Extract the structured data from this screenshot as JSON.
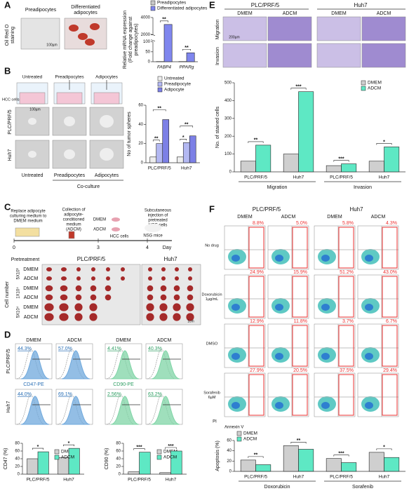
{
  "panels": {
    "A": {
      "label": "A",
      "row_label": [
        "Oil Red O",
        "staining"
      ],
      "columns": [
        [
          "Preadipocytes"
        ],
        [
          "Differentiated",
          "adipocytes"
        ]
      ],
      "scale_bar": "100µm"
    },
    "B": {
      "label": "B",
      "columns": [
        "Untreated",
        "Preadipocytes",
        "Adipocytes"
      ],
      "cells": "HCC cells",
      "rows": [
        "PLC/PRF/5",
        "Huh7"
      ],
      "bottom": [
        "Untreated",
        "Preadipocytes",
        "Adipocytes"
      ],
      "group": "Co-culture",
      "scale_bar": "100µm"
    },
    "C": {
      "label": "C",
      "steps": [
        [
          "Replace adipocyte",
          "culturing medium to",
          "DMEM medium"
        ],
        [
          "Collection of",
          "adipocyte-",
          "conditioned",
          "medium",
          "(ADCM)"
        ],
        [
          "Subcutaneous",
          "injection of",
          "pretreated",
          "HCC cells"
        ]
      ],
      "media": [
        "DMEM",
        "ADCM"
      ],
      "cells": "HCC cells",
      "mice": "NSG mice",
      "days": [
        "0",
        "3",
        "4"
      ],
      "day_unit": "Day",
      "pretreatment": "Pretreatment",
      "lines": [
        "PLC/PRF/5",
        "Huh7"
      ],
      "cell_number": "Cell number",
      "doses": [
        "5X10³",
        "1X10⁴",
        "5X10⁴"
      ],
      "conditions": [
        "DMEM",
        "ADCM"
      ],
      "scale_bar": "1cm"
    },
    "D": {
      "label": "D",
      "columns": [
        "DMEM",
        "ADCM",
        "DMEM",
        "ADCM"
      ],
      "rows": [
        "PLC/PRF/5",
        "Huh7"
      ],
      "percent": [
        [
          "44.3%",
          "57.0%",
          "4.41%",
          "40.3%"
        ],
        [
          "44.0%",
          "69.1%",
          "2.56%",
          "63.2%"
        ]
      ],
      "markers": [
        "CD47-PE",
        "CD90-PE"
      ]
    },
    "E": {
      "label": "E",
      "lines": [
        "PLC/PRF/5",
        "Huh7"
      ],
      "columns": [
        "DMEM",
        "ADCM",
        "DMEM",
        "ADCM"
      ],
      "rows": [
        "Migration",
        "Invasion"
      ],
      "scale_bar": "200µm"
    },
    "F": {
      "label": "F",
      "lines": [
        "PLC/PRF/5",
        "Huh7"
      ],
      "columns": [
        "DMEM",
        "ADCM",
        "DMEM",
        "ADCM"
      ],
      "rows": [
        [
          "No drug"
        ],
        [
          "Doxorubicin",
          "1µg/mL"
        ],
        [
          "DMSO"
        ],
        [
          "Sorafenib",
          "6µM"
        ]
      ],
      "percent": [
        [
          "8.8%",
          "5.0%",
          "5.8%",
          "4.3%"
        ],
        [
          "24.9%",
          "15.9%",
          "51.2%",
          "43.0%"
        ],
        [
          "12.9%",
          "11.8%",
          "3.7%",
          "6.7%"
        ],
        [
          "27.9%",
          "20.5%",
          "37.5%",
          "29.4%"
        ]
      ],
      "y_axis": "PI",
      "x_axis": "Annexin V"
    }
  },
  "chart_data": [
    {
      "type": "bar",
      "ylabel": [
        "Relative mRNA expression",
        "(Fold change against",
        "preadipocytes)"
      ],
      "categories": [
        "FABP4",
        "PPARg"
      ],
      "series": [
        {
          "name": "Preadipocytes",
          "color": "#c8c8c8",
          "values": [
            1,
            1
          ]
        },
        {
          "name": "Differentiated adipocytes",
          "color": "#7f86ee",
          "values": [
            3200,
            45
          ]
        }
      ],
      "ylim": [
        [
          0,
          100
        ],
        [
          2000,
          4000
        ]
      ],
      "yticks": [
        0,
        50,
        100,
        2000,
        4000
      ],
      "significance": [
        "**",
        "**"
      ]
    },
    {
      "type": "bar",
      "ylabel": [
        "No of tumor spheres"
      ],
      "categories": [
        "PLC/PRF/5",
        "Huh7"
      ],
      "series": [
        {
          "name": "Untreated",
          "color": "#eeeeee",
          "values": [
            6,
            6
          ]
        },
        {
          "name": "Preadipocyte",
          "color": "#b3b8f2",
          "values": [
            20,
            21
          ]
        },
        {
          "name": "Adipocyte",
          "color": "#7c80e6",
          "values": [
            45,
            28
          ]
        }
      ],
      "ylim": [
        0,
        60
      ],
      "yticks": [
        0,
        20,
        40,
        60
      ],
      "significance": [
        [
          "**",
          "**"
        ],
        [
          "*",
          "**"
        ]
      ]
    },
    {
      "type": "bar",
      "ylabel": [
        "CD47 (%)"
      ],
      "categories": [
        "PLC/PRF/5",
        "Huh7"
      ],
      "series": [
        {
          "name": "DMEM",
          "color": "#cfcfcf",
          "values": [
            40,
            43
          ]
        },
        {
          "name": "ADCM",
          "color": "#5ee8c4",
          "values": [
            58,
            67
          ]
        }
      ],
      "ylim": [
        0,
        80
      ],
      "yticks": [
        0,
        20,
        40,
        60,
        80
      ],
      "significance": [
        "*",
        "*"
      ]
    },
    {
      "type": "bar",
      "ylabel": [
        "CD90 (%)"
      ],
      "categories": [
        "PLC/PRF/5",
        "Huh7"
      ],
      "series": [
        {
          "name": "DMEM",
          "color": "#cfcfcf",
          "values": [
            6,
            4
          ]
        },
        {
          "name": "ADCM",
          "color": "#5ee8c4",
          "values": [
            57,
            60
          ]
        }
      ],
      "ylim": [
        0,
        80
      ],
      "yticks": [
        0,
        20,
        40,
        60,
        80
      ],
      "significance": [
        "***",
        "***"
      ]
    },
    {
      "type": "bar",
      "ylabel": [
        "No. of stained cells"
      ],
      "categories": [
        "PLC/PRF/5",
        "Huh7",
        "PLC/PRF/5",
        "Huh7"
      ],
      "groups": [
        "Migration",
        "Invasion"
      ],
      "series": [
        {
          "name": "DMEM",
          "color": "#cfcfcf",
          "values": [
            60,
            100,
            35,
            60
          ]
        },
        {
          "name": "ADCM",
          "color": "#5ee8c4",
          "values": [
            150,
            450,
            45,
            140
          ]
        }
      ],
      "ylim": [
        0,
        500
      ],
      "yticks": [
        0,
        100,
        200,
        300,
        400,
        500
      ],
      "significance": [
        "**",
        "***",
        "***",
        "*"
      ]
    },
    {
      "type": "bar",
      "ylabel": [
        "Apoptosis (%)"
      ],
      "categories": [
        "PLC/PRF/5",
        "Huh7",
        "PLC/PRF/5",
        "Huh7"
      ],
      "groups": [
        "Doxorubicin",
        "Sorafenib"
      ],
      "series": [
        {
          "name": "DMEM",
          "color": "#cfcfcf",
          "values": [
            22,
            50,
            25,
            37
          ]
        },
        {
          "name": "ADCM",
          "color": "#5ee8c4",
          "values": [
            13,
            43,
            17,
            27
          ]
        }
      ],
      "ylim": [
        0,
        60
      ],
      "yticks": [
        0,
        20,
        40,
        60
      ],
      "significance": [
        "**",
        "**",
        "***",
        "*"
      ]
    }
  ]
}
